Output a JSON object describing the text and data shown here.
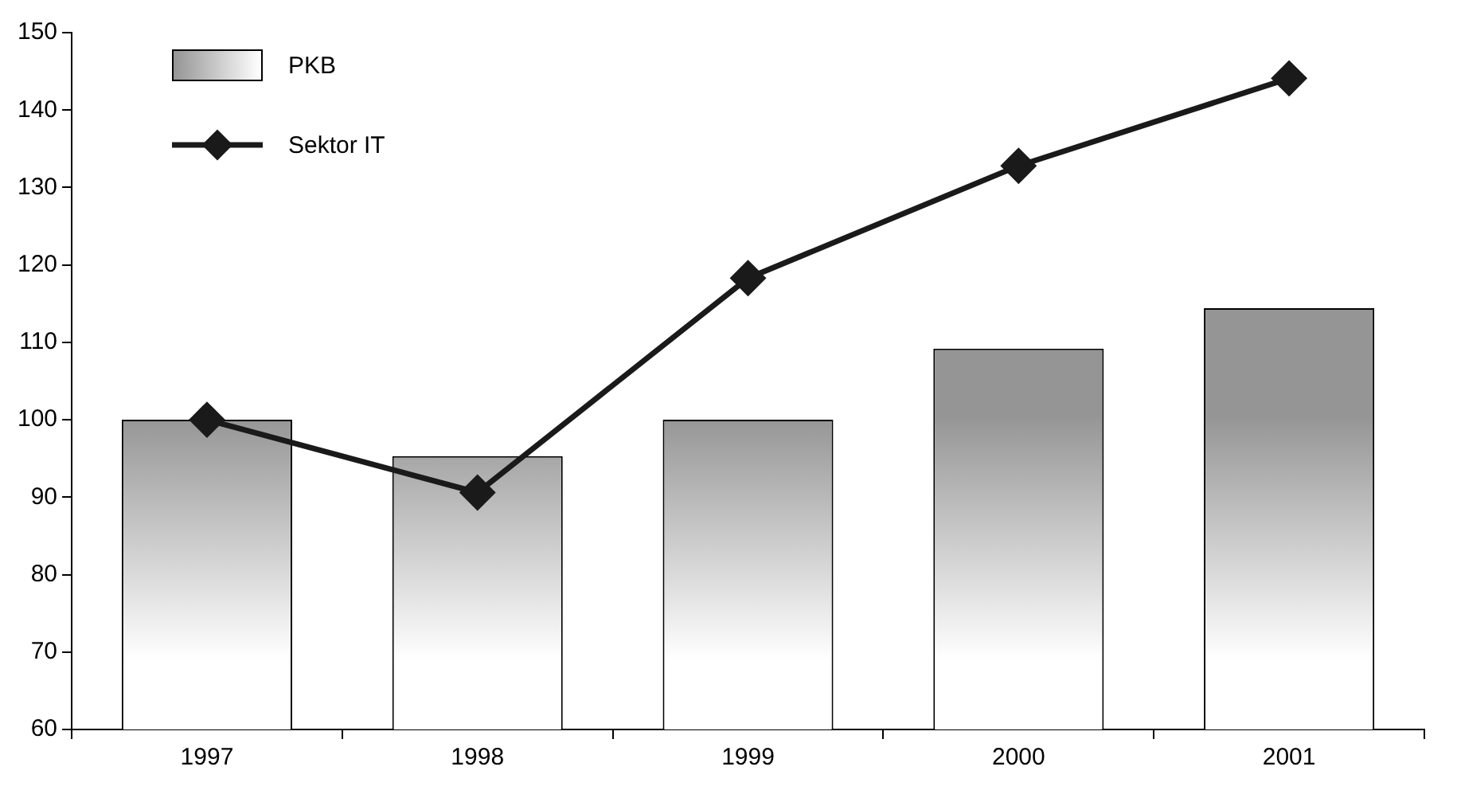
{
  "chart_data": {
    "type": "bar",
    "categories": [
      "1997",
      "1998",
      "1999",
      "2000",
      "2001"
    ],
    "series": [
      {
        "name": "PKB",
        "color": "#959595",
        "values": [
          100,
          95.3,
          100,
          109.2,
          114.4
        ]
      },
      {
        "name": "Sektor IT",
        "type": "line",
        "color": "#1a1a1a",
        "values": [
          100,
          90.6,
          118.3,
          132.8,
          144.1
        ]
      }
    ],
    "ylim": [
      60,
      150
    ],
    "yticks": [
      60,
      70,
      80,
      90,
      100,
      110,
      120,
      130,
      140,
      150
    ],
    "grid": false,
    "legend": "top left",
    "marker": "diamond",
    "line_style": "solid"
  }
}
